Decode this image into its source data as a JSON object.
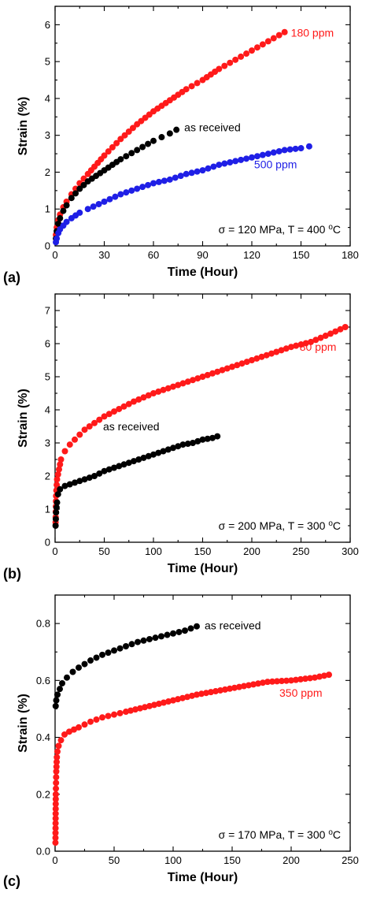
{
  "chart_data": [
    {
      "type": "scatter",
      "panel_label": "(a)",
      "xlabel": "Time (Hour)",
      "ylabel": "Strain (%)",
      "xlim": [
        0,
        180
      ],
      "ylim": [
        0,
        6.5
      ],
      "xticks": [
        0,
        30,
        60,
        90,
        120,
        150,
        180
      ],
      "yticks": [
        0,
        1,
        2,
        3,
        4,
        5,
        6
      ],
      "annotation": {
        "sigma": "σ = 120 MPa, T = 400 ",
        "unit": "C",
        "deg": "o"
      },
      "series": [
        {
          "name": "180 ppm",
          "color": "#ff1a1a",
          "x": [
            0.5,
            1,
            2,
            3,
            5,
            7,
            10,
            15,
            20,
            30,
            40,
            50,
            60,
            70,
            80,
            90,
            100,
            110,
            120,
            130,
            140
          ],
          "y": [
            0.3,
            0.5,
            0.7,
            0.85,
            1.05,
            1.2,
            1.4,
            1.7,
            1.95,
            2.45,
            2.9,
            3.3,
            3.65,
            3.95,
            4.25,
            4.5,
            4.8,
            5.05,
            5.3,
            5.55,
            5.8
          ]
        },
        {
          "name": "as received",
          "color": "#000000",
          "x": [
            0.5,
            1,
            2,
            3,
            5,
            7,
            10,
            15,
            20,
            25,
            30,
            40,
            50,
            60,
            65,
            70,
            74
          ],
          "y": [
            0.2,
            0.4,
            0.6,
            0.75,
            0.95,
            1.1,
            1.3,
            1.55,
            1.75,
            1.9,
            2.05,
            2.35,
            2.6,
            2.85,
            2.95,
            3.05,
            3.15
          ]
        },
        {
          "name": "500 ppm",
          "color": "#1f1fe6",
          "x": [
            0.5,
            1,
            2,
            3,
            5,
            7,
            10,
            15,
            20,
            30,
            40,
            50,
            60,
            70,
            80,
            90,
            100,
            110,
            120,
            130,
            140,
            150,
            155
          ],
          "y": [
            0.1,
            0.2,
            0.35,
            0.45,
            0.55,
            0.65,
            0.75,
            0.9,
            1.0,
            1.2,
            1.4,
            1.55,
            1.7,
            1.8,
            1.95,
            2.05,
            2.2,
            2.3,
            2.4,
            2.5,
            2.6,
            2.65,
            2.7
          ]
        }
      ]
    },
    {
      "type": "scatter",
      "panel_label": "(b)",
      "xlabel": "Time (Hour)",
      "ylabel": "Strain (%)",
      "xlim": [
        0,
        300
      ],
      "ylim": [
        0,
        7.5
      ],
      "xticks": [
        0,
        50,
        100,
        150,
        200,
        250,
        300
      ],
      "yticks": [
        0,
        1,
        2,
        3,
        4,
        5,
        6,
        7
      ],
      "annotation": {
        "sigma": "σ = 200 MPa, T = 300 ",
        "unit": "C",
        "deg": "o"
      },
      "series": [
        {
          "name": "80 ppm",
          "color": "#ff1a1a",
          "x": [
            0.5,
            1,
            2,
            4,
            6,
            10,
            15,
            20,
            30,
            40,
            50,
            60,
            80,
            100,
            120,
            140,
            160,
            180,
            200,
            220,
            240,
            260,
            280,
            295
          ],
          "y": [
            0.6,
            1.4,
            1.9,
            2.2,
            2.5,
            2.75,
            2.95,
            3.1,
            3.4,
            3.6,
            3.8,
            3.95,
            4.25,
            4.5,
            4.7,
            4.9,
            5.1,
            5.3,
            5.5,
            5.7,
            5.9,
            6.05,
            6.3,
            6.5
          ]
        },
        {
          "name": "as received",
          "color": "#000000",
          "x": [
            0.5,
            1,
            2,
            3,
            5,
            10,
            20,
            30,
            40,
            50,
            60,
            70,
            80,
            90,
            100,
            110,
            120,
            130,
            140,
            150,
            160,
            165
          ],
          "y": [
            0.5,
            0.9,
            1.2,
            1.45,
            1.6,
            1.7,
            1.8,
            1.9,
            2.0,
            2.15,
            2.25,
            2.35,
            2.45,
            2.55,
            2.65,
            2.75,
            2.85,
            2.95,
            3.0,
            3.1,
            3.15,
            3.2
          ]
        }
      ]
    },
    {
      "type": "scatter",
      "panel_label": "(c)",
      "xlabel": "Time (Hour)",
      "ylabel": "Strain (%)",
      "xlim": [
        0,
        250
      ],
      "ylim": [
        0,
        0.9
      ],
      "xticks": [
        0,
        50,
        100,
        150,
        200,
        250
      ],
      "yticks": [
        0.0,
        0.2,
        0.4,
        0.6,
        0.8
      ],
      "ytick_labels": [
        "0.0",
        "0.2",
        "0.4",
        "0.6",
        "0.8"
      ],
      "annotation": {
        "sigma": "σ = 170 MPa, T = 300 ",
        "unit": "C",
        "deg": "o"
      },
      "series": [
        {
          "name": "as received",
          "color": "#000000",
          "x": [
            0.5,
            1,
            2,
            4,
            6,
            10,
            15,
            20,
            30,
            40,
            50,
            60,
            70,
            80,
            90,
            100,
            110,
            120
          ],
          "y": [
            0.51,
            0.53,
            0.55,
            0.57,
            0.59,
            0.61,
            0.63,
            0.645,
            0.67,
            0.69,
            0.705,
            0.72,
            0.735,
            0.745,
            0.755,
            0.765,
            0.775,
            0.79
          ]
        },
        {
          "name": "350 ppm",
          "color": "#ff1a1a",
          "x": [
            0.3,
            0.6,
            1,
            1.5,
            2,
            3,
            5,
            8,
            12,
            20,
            30,
            40,
            50,
            60,
            80,
            100,
            120,
            140,
            160,
            180,
            200,
            220,
            232
          ],
          "y": [
            0.03,
            0.2,
            0.28,
            0.33,
            0.35,
            0.37,
            0.39,
            0.41,
            0.42,
            0.435,
            0.455,
            0.47,
            0.48,
            0.49,
            0.51,
            0.53,
            0.55,
            0.565,
            0.58,
            0.595,
            0.6,
            0.61,
            0.62
          ]
        }
      ]
    }
  ]
}
